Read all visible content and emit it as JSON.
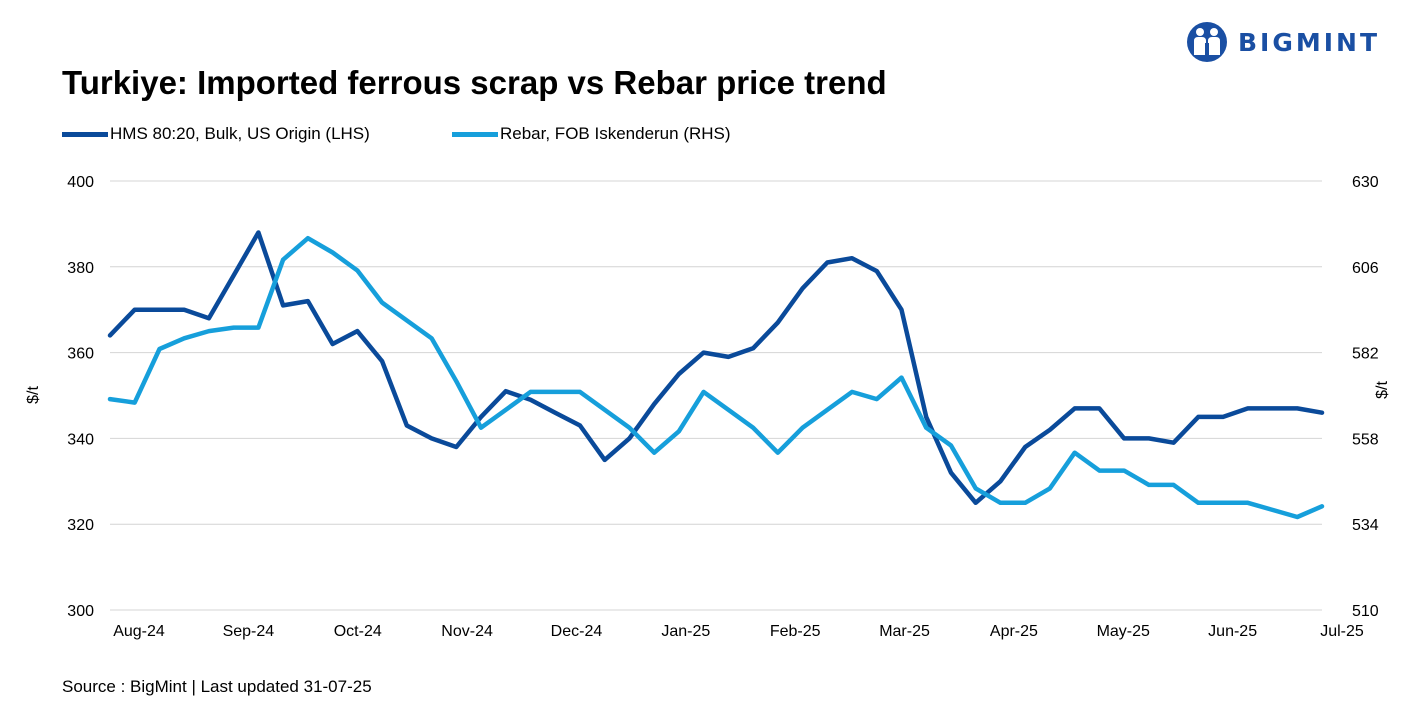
{
  "brand": {
    "name": "BIGMINT",
    "color": "#1a4fa3"
  },
  "chart_data": {
    "type": "line",
    "title": "Turkiye: Imported ferrous scrap vs Rebar price trend",
    "ylabel": "$/t",
    "y2label": "$/t",
    "ylim": [
      300,
      400
    ],
    "y2lim": [
      510,
      630
    ],
    "yticks": [
      "400",
      "380",
      "360",
      "340",
      "320",
      "300"
    ],
    "y2ticks": [
      "630",
      "606",
      "582",
      "558",
      "534",
      "510"
    ],
    "xlabels": [
      "Aug-24",
      "Sep-24",
      "Oct-24",
      "Nov-24",
      "Dec-24",
      "Jan-25",
      "Feb-25",
      "Mar-25",
      "Apr-25",
      "May-25",
      "Jun-25",
      "Jul-25"
    ],
    "grid": true,
    "legend_position": "top-left",
    "series": [
      {
        "name": "HMS 80:20, Bulk, US Origin (LHS)",
        "axis": "left",
        "color": "#0a4a9a",
        "values": [
          364,
          370,
          370,
          370,
          368,
          378,
          388,
          371,
          372,
          362,
          365,
          358,
          343,
          340,
          338,
          345,
          351,
          349,
          346,
          343,
          335,
          340,
          348,
          355,
          360,
          359,
          361,
          367,
          375,
          381,
          382,
          379,
          370,
          345,
          332,
          325,
          330,
          338,
          342,
          347,
          347,
          340,
          340,
          339,
          345,
          345,
          347,
          347,
          347,
          346
        ]
      },
      {
        "name": "Rebar, FOB Iskenderun (RHS)",
        "axis": "right",
        "color": "#169fdb",
        "values": [
          569,
          568,
          583,
          586,
          588,
          589,
          589,
          608,
          614,
          610,
          605,
          596,
          591,
          586,
          574,
          561,
          566,
          571,
          571,
          571,
          566,
          561,
          554,
          560,
          571,
          566,
          561,
          554,
          561,
          566,
          571,
          569,
          575,
          561,
          556,
          544,
          540,
          540,
          544,
          554,
          549,
          549,
          545,
          545,
          540,
          540,
          540,
          538,
          536,
          539
        ]
      }
    ]
  },
  "footer": {
    "source": "Source : BigMint | Last updated 31-07-25"
  }
}
